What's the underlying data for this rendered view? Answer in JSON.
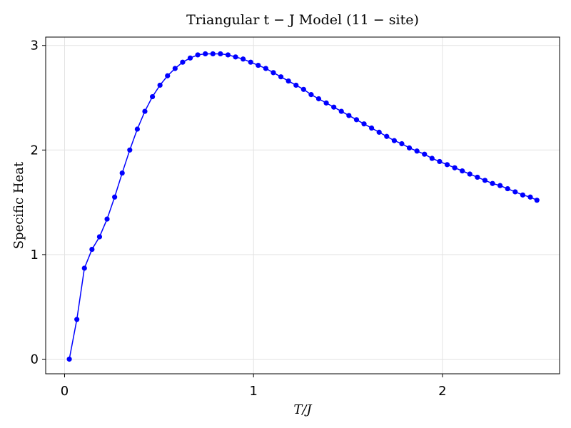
{
  "chart_data": {
    "type": "line",
    "title": "Triangular t − J Model (11 − site)",
    "xlabel": "T/J",
    "ylabel": "Specific Heat",
    "xlim": [
      -0.1,
      2.62
    ],
    "ylim": [
      -0.14,
      3.08
    ],
    "xticks": [
      0,
      1,
      2
    ],
    "yticks": [
      0,
      1,
      2,
      3
    ],
    "grid": true,
    "series": [
      {
        "color": "#0000ff",
        "marker": "circle",
        "x": [
          0.025,
          0.065,
          0.105,
          0.145,
          0.185,
          0.225,
          0.265,
          0.305,
          0.345,
          0.385,
          0.425,
          0.465,
          0.505,
          0.545,
          0.585,
          0.625,
          0.665,
          0.705,
          0.745,
          0.785,
          0.825,
          0.865,
          0.905,
          0.945,
          0.985,
          1.025,
          1.065,
          1.105,
          1.145,
          1.185,
          1.225,
          1.265,
          1.305,
          1.345,
          1.385,
          1.425,
          1.465,
          1.505,
          1.545,
          1.585,
          1.625,
          1.665,
          1.705,
          1.745,
          1.785,
          1.825,
          1.865,
          1.905,
          1.945,
          1.985,
          2.025,
          2.065,
          2.105,
          2.145,
          2.185,
          2.225,
          2.265,
          2.305,
          2.345,
          2.385,
          2.425,
          2.465,
          2.5
        ],
        "y": [
          0.0,
          0.38,
          0.87,
          1.05,
          1.17,
          1.34,
          1.55,
          1.78,
          2.0,
          2.2,
          2.37,
          2.51,
          2.62,
          2.71,
          2.78,
          2.84,
          2.88,
          2.91,
          2.92,
          2.92,
          2.92,
          2.91,
          2.89,
          2.87,
          2.84,
          2.81,
          2.78,
          2.74,
          2.7,
          2.66,
          2.62,
          2.58,
          2.53,
          2.49,
          2.45,
          2.41,
          2.37,
          2.33,
          2.29,
          2.25,
          2.21,
          2.17,
          2.13,
          2.09,
          2.06,
          2.02,
          1.99,
          1.96,
          1.92,
          1.89,
          1.86,
          1.83,
          1.8,
          1.77,
          1.74,
          1.71,
          1.68,
          1.66,
          1.63,
          1.6,
          1.57,
          1.55,
          1.52
        ]
      }
    ]
  }
}
